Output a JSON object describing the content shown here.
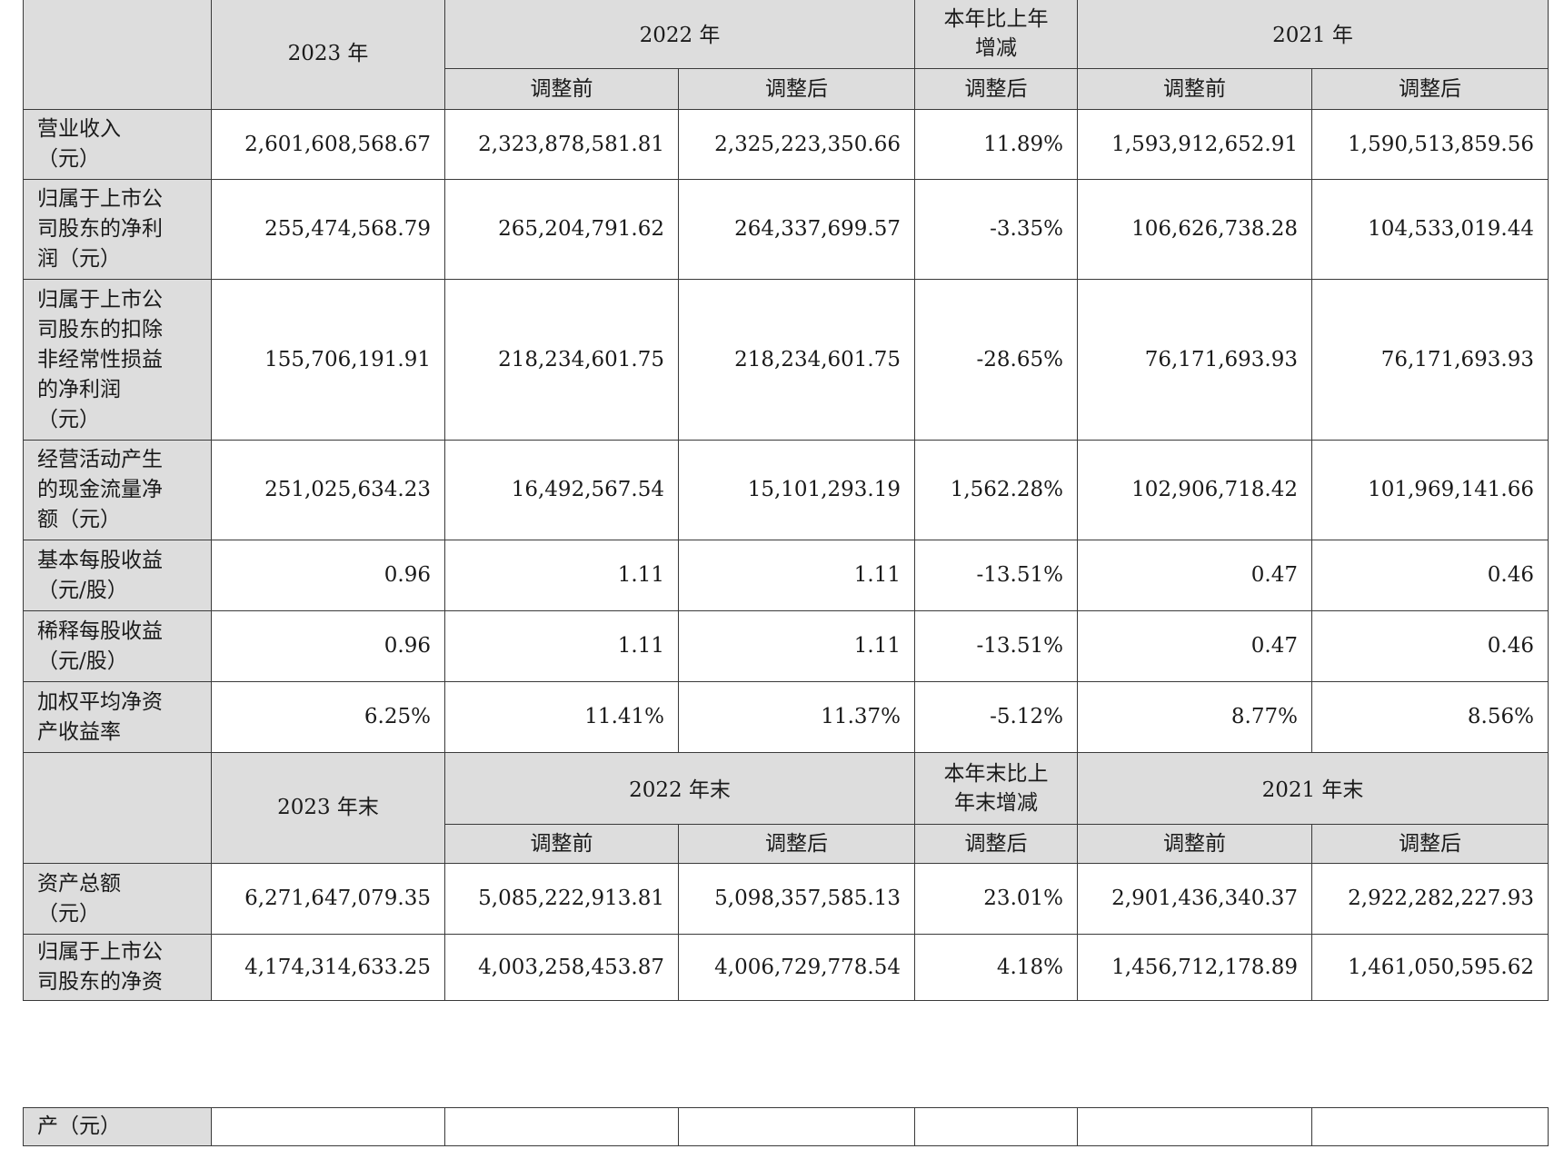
{
  "section1": {
    "header": {
      "y2023": "2023 年",
      "y2022": "2022 年",
      "change": "本年比上年\n增减",
      "y2021": "2021 年",
      "sub_before": "调整前",
      "sub_after": "调整后"
    },
    "rows": [
      {
        "label": "营业收入\n（元）",
        "v2023": "2,601,608,568.67",
        "v2022_before": "2,323,878,581.81",
        "v2022_after": "2,325,223,350.66",
        "change": "11.89%",
        "v2021_before": "1,593,912,652.91",
        "v2021_after": "1,590,513,859.56"
      },
      {
        "label": "归属于上市公\n司股东的净利\n润（元）",
        "v2023": "255,474,568.79",
        "v2022_before": "265,204,791.62",
        "v2022_after": "264,337,699.57",
        "change": "-3.35%",
        "v2021_before": "106,626,738.28",
        "v2021_after": "104,533,019.44"
      },
      {
        "label": "归属于上市公\n司股东的扣除\n非经常性损益\n的净利润\n（元）",
        "v2023": "155,706,191.91",
        "v2022_before": "218,234,601.75",
        "v2022_after": "218,234,601.75",
        "change": "-28.65%",
        "v2021_before": "76,171,693.93",
        "v2021_after": "76,171,693.93"
      },
      {
        "label": "经营活动产生\n的现金流量净\n额（元）",
        "v2023": "251,025,634.23",
        "v2022_before": "16,492,567.54",
        "v2022_after": "15,101,293.19",
        "change": "1,562.28%",
        "v2021_before": "102,906,718.42",
        "v2021_after": "101,969,141.66"
      },
      {
        "label": "基本每股收益\n（元/股）",
        "v2023": "0.96",
        "v2022_before": "1.11",
        "v2022_after": "1.11",
        "change": "-13.51%",
        "v2021_before": "0.47",
        "v2021_after": "0.46"
      },
      {
        "label": "稀释每股收益\n（元/股）",
        "v2023": "0.96",
        "v2022_before": "1.11",
        "v2022_after": "1.11",
        "change": "-13.51%",
        "v2021_before": "0.47",
        "v2021_after": "0.46"
      },
      {
        "label": "加权平均净资\n产收益率",
        "v2023": "6.25%",
        "v2022_before": "11.41%",
        "v2022_after": "11.37%",
        "change": "-5.12%",
        "v2021_before": "8.77%",
        "v2021_after": "8.56%"
      }
    ]
  },
  "section2": {
    "header": {
      "y2023": "2023 年末",
      "y2022": "2022 年末",
      "change": "本年末比上\n年末增减",
      "y2021": "2021 年末",
      "sub_before": "调整前",
      "sub_after": "调整后"
    },
    "rows": [
      {
        "label": "资产总额\n（元）",
        "v2023": "6,271,647,079.35",
        "v2022_before": "5,085,222,913.81",
        "v2022_after": "5,098,357,585.13",
        "change": "23.01%",
        "v2021_before": "2,901,436,340.37",
        "v2021_after": "2,922,282,227.93"
      },
      {
        "label": "归属于上市公\n司股东的净资",
        "v2023": "4,174,314,633.25",
        "v2022_before": "4,003,258,453.87",
        "v2022_after": "4,006,729,778.54",
        "change": "4.18%",
        "v2021_before": "1,456,712,178.89",
        "v2021_after": "1,461,050,595.62"
      }
    ],
    "continuation_label": "产（元）"
  }
}
